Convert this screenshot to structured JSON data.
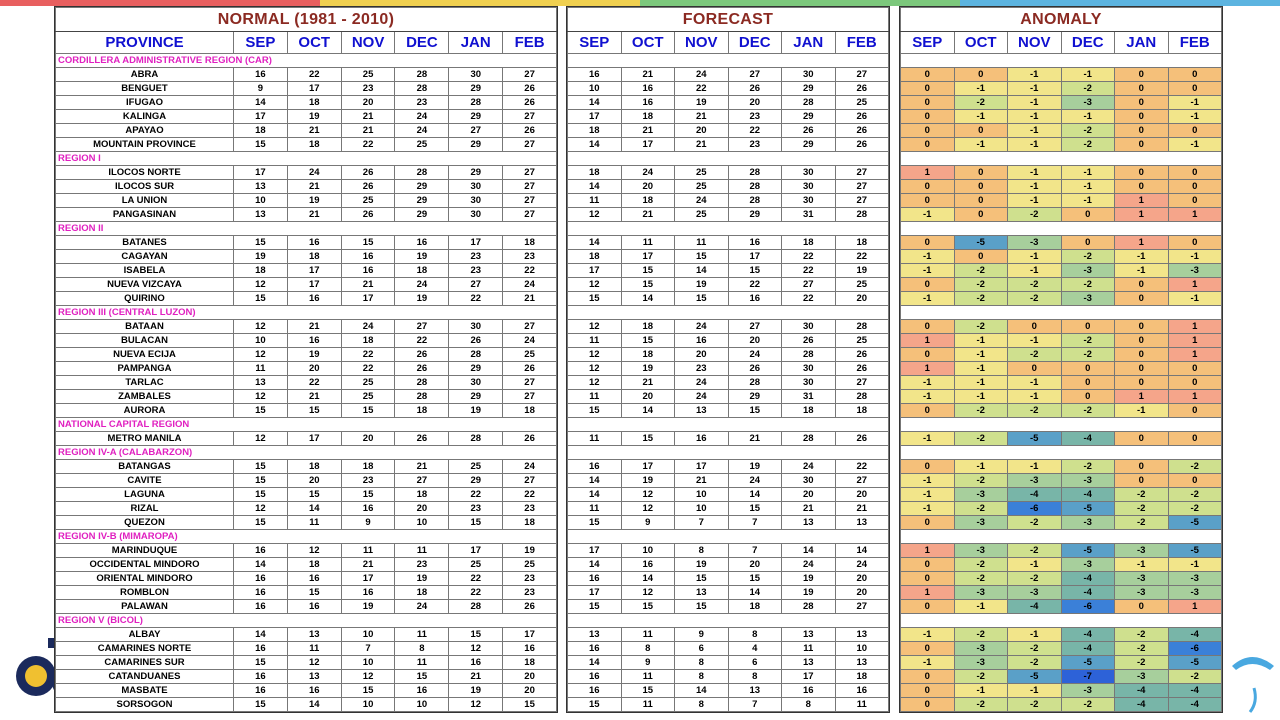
{
  "titles": {
    "normal": "NORMAL (1981 - 2010)",
    "forecast": "FORECAST",
    "anomaly": "ANOMALY"
  },
  "headers": {
    "province": "PROVINCE",
    "months": [
      "SEP",
      "OCT",
      "NOV",
      "DEC",
      "JAN",
      "FEB"
    ]
  },
  "colors": {
    "title": "#8b2a22",
    "header": "#1010d0",
    "region": "#e020c0",
    "anom_pos2": "#f07060",
    "anom_pos1": "#f5a58a",
    "anom_zero": "#f5c07a",
    "anom_neg1": "#f2e58a",
    "anom_neg2": "#cfe08e",
    "anom_neg3": "#a7cf9c",
    "anom_neg4": "#78b5a8",
    "anom_neg5": "#5aa0c8",
    "anom_neg6": "#3b80d8",
    "anom_neg7": "#2d62d8",
    "topbar": [
      "#e85f5f",
      "#f0d050",
      "#7cc87c",
      "#5cb4e0"
    ]
  },
  "logos": {
    "left": "the-weather-and-climate-authority-logo",
    "right": "pagasa-logo"
  },
  "rows": [
    {
      "region": "CORDILLERA ADMINISTRATIVE REGION (CAR)"
    },
    {
      "province": "ABRA",
      "normal": [
        16,
        22,
        25,
        28,
        30,
        27
      ],
      "forecast": [
        16,
        21,
        24,
        27,
        30,
        27
      ],
      "anomaly": [
        0,
        0,
        -1,
        -1,
        0,
        0
      ]
    },
    {
      "province": "BENGUET",
      "normal": [
        9,
        17,
        23,
        28,
        29,
        26
      ],
      "forecast": [
        10,
        16,
        22,
        26,
        29,
        26
      ],
      "anomaly": [
        0,
        -1,
        -1,
        -2,
        0,
        0
      ]
    },
    {
      "province": "IFUGAO",
      "normal": [
        14,
        18,
        20,
        23,
        28,
        26
      ],
      "forecast": [
        14,
        16,
        19,
        20,
        28,
        25
      ],
      "anomaly": [
        0,
        -2,
        -1,
        -3,
        0,
        -1
      ]
    },
    {
      "province": "KALINGA",
      "normal": [
        17,
        19,
        21,
        24,
        29,
        27
      ],
      "forecast": [
        17,
        18,
        21,
        23,
        29,
        26
      ],
      "anomaly": [
        0,
        -1,
        -1,
        -1,
        0,
        -1
      ]
    },
    {
      "province": "APAYAO",
      "normal": [
        18,
        21,
        21,
        24,
        27,
        26
      ],
      "forecast": [
        18,
        21,
        20,
        22,
        26,
        26
      ],
      "anomaly": [
        0,
        0,
        -1,
        -2,
        0,
        0
      ]
    },
    {
      "province": "MOUNTAIN PROVINCE",
      "normal": [
        15,
        18,
        22,
        25,
        29,
        27
      ],
      "forecast": [
        14,
        17,
        21,
        23,
        29,
        26
      ],
      "anomaly": [
        0,
        -1,
        -1,
        -2,
        0,
        -1
      ]
    },
    {
      "region": "REGION I"
    },
    {
      "province": "ILOCOS NORTE",
      "normal": [
        17,
        24,
        26,
        28,
        29,
        27
      ],
      "forecast": [
        18,
        24,
        25,
        28,
        30,
        27
      ],
      "anomaly": [
        1,
        0,
        -1,
        -1,
        0,
        0
      ]
    },
    {
      "province": "ILOCOS SUR",
      "normal": [
        13,
        21,
        26,
        29,
        30,
        27
      ],
      "forecast": [
        14,
        20,
        25,
        28,
        30,
        27
      ],
      "anomaly": [
        0,
        0,
        -1,
        -1,
        0,
        0
      ]
    },
    {
      "province": "LA UNION",
      "normal": [
        10,
        19,
        25,
        29,
        30,
        27
      ],
      "forecast": [
        11,
        18,
        24,
        28,
        30,
        27
      ],
      "anomaly": [
        0,
        0,
        -1,
        -1,
        1,
        0
      ]
    },
    {
      "province": "PANGASINAN",
      "normal": [
        13,
        21,
        26,
        29,
        30,
        27
      ],
      "forecast": [
        12,
        21,
        25,
        29,
        31,
        28
      ],
      "anomaly": [
        -1,
        0,
        -2,
        0,
        1,
        1
      ]
    },
    {
      "region": "REGION II"
    },
    {
      "province": "BATANES",
      "normal": [
        15,
        16,
        15,
        16,
        17,
        18
      ],
      "forecast": [
        14,
        11,
        11,
        16,
        18,
        18
      ],
      "anomaly": [
        0,
        -5,
        -3,
        0,
        1,
        0
      ]
    },
    {
      "province": "CAGAYAN",
      "normal": [
        19,
        18,
        16,
        19,
        23,
        23
      ],
      "forecast": [
        18,
        17,
        15,
        17,
        22,
        22
      ],
      "anomaly": [
        -1,
        0,
        -1,
        -2,
        -1,
        -1
      ]
    },
    {
      "province": "ISABELA",
      "normal": [
        18,
        17,
        16,
        18,
        23,
        22
      ],
      "forecast": [
        17,
        15,
        14,
        15,
        22,
        19
      ],
      "anomaly": [
        -1,
        -2,
        -1,
        -3,
        -1,
        -3
      ]
    },
    {
      "province": "NUEVA VIZCAYA",
      "normal": [
        12,
        17,
        21,
        24,
        27,
        24
      ],
      "forecast": [
        12,
        15,
        19,
        22,
        27,
        25
      ],
      "anomaly": [
        0,
        -2,
        -2,
        -2,
        0,
        1
      ]
    },
    {
      "province": "QUIRINO",
      "normal": [
        15,
        16,
        17,
        19,
        22,
        21
      ],
      "forecast": [
        15,
        14,
        15,
        16,
        22,
        20
      ],
      "anomaly": [
        -1,
        -2,
        -2,
        -3,
        0,
        -1
      ]
    },
    {
      "region": "REGION III (CENTRAL LUZON)"
    },
    {
      "province": "BATAAN",
      "normal": [
        12,
        21,
        24,
        27,
        30,
        27
      ],
      "forecast": [
        12,
        18,
        24,
        27,
        30,
        28
      ],
      "anomaly": [
        0,
        -2,
        0,
        0,
        0,
        1
      ]
    },
    {
      "province": "BULACAN",
      "normal": [
        10,
        16,
        18,
        22,
        26,
        24
      ],
      "forecast": [
        11,
        15,
        16,
        20,
        26,
        25
      ],
      "anomaly": [
        1,
        -1,
        -1,
        -2,
        0,
        1
      ]
    },
    {
      "province": "NUEVA ECIJA",
      "normal": [
        12,
        19,
        22,
        26,
        28,
        25
      ],
      "forecast": [
        12,
        18,
        20,
        24,
        28,
        26
      ],
      "anomaly": [
        0,
        -1,
        -2,
        -2,
        0,
        1
      ]
    },
    {
      "province": "PAMPANGA",
      "normal": [
        11,
        20,
        22,
        26,
        29,
        26
      ],
      "forecast": [
        12,
        19,
        23,
        26,
        30,
        26
      ],
      "anomaly": [
        1,
        -1,
        0,
        0,
        0,
        0
      ]
    },
    {
      "province": "TARLAC",
      "normal": [
        13,
        22,
        25,
        28,
        30,
        27
      ],
      "forecast": [
        12,
        21,
        24,
        28,
        30,
        27
      ],
      "anomaly": [
        -1,
        -1,
        -1,
        0,
        0,
        0
      ]
    },
    {
      "province": "ZAMBALES",
      "normal": [
        12,
        21,
        25,
        28,
        29,
        27
      ],
      "forecast": [
        11,
        20,
        24,
        29,
        31,
        28
      ],
      "anomaly": [
        -1,
        -1,
        -1,
        0,
        1,
        1
      ]
    },
    {
      "province": "AURORA",
      "normal": [
        15,
        15,
        15,
        18,
        19,
        18
      ],
      "forecast": [
        15,
        14,
        13,
        15,
        18,
        18
      ],
      "anomaly": [
        0,
        -2,
        -2,
        -2,
        -1,
        0
      ]
    },
    {
      "region": "NATIONAL CAPITAL REGION"
    },
    {
      "province": "METRO MANILA",
      "normal": [
        12,
        17,
        20,
        26,
        28,
        26
      ],
      "forecast": [
        11,
        15,
        16,
        21,
        28,
        26
      ],
      "anomaly": [
        -1,
        -2,
        -5,
        -4,
        0,
        0
      ]
    },
    {
      "region": "REGION IV-A (CALABARZON)"
    },
    {
      "province": "BATANGAS",
      "normal": [
        15,
        18,
        18,
        21,
        25,
        24
      ],
      "forecast": [
        16,
        17,
        17,
        19,
        24,
        22
      ],
      "anomaly": [
        0,
        -1,
        -1,
        -2,
        0,
        -2
      ]
    },
    {
      "province": "CAVITE",
      "normal": [
        15,
        20,
        23,
        27,
        29,
        27
      ],
      "forecast": [
        14,
        19,
        21,
        24,
        30,
        27
      ],
      "anomaly": [
        -1,
        -2,
        -3,
        -3,
        0,
        0
      ]
    },
    {
      "province": "LAGUNA",
      "normal": [
        15,
        15,
        15,
        18,
        22,
        22
      ],
      "forecast": [
        14,
        12,
        10,
        14,
        20,
        20
      ],
      "anomaly": [
        -1,
        -3,
        -4,
        -4,
        -2,
        -2
      ]
    },
    {
      "province": "RIZAL",
      "normal": [
        12,
        14,
        16,
        20,
        23,
        23
      ],
      "forecast": [
        11,
        12,
        10,
        15,
        21,
        21
      ],
      "anomaly": [
        -1,
        -2,
        -6,
        -5,
        -2,
        -2
      ]
    },
    {
      "province": "QUEZON",
      "normal": [
        15,
        11,
        9,
        10,
        15,
        18
      ],
      "forecast": [
        15,
        9,
        7,
        7,
        13,
        13
      ],
      "anomaly": [
        0,
        -3,
        -2,
        -3,
        -2,
        -5
      ]
    },
    {
      "region": "REGION IV-B (MIMAROPA)"
    },
    {
      "province": "MARINDUQUE",
      "normal": [
        16,
        12,
        11,
        11,
        17,
        19
      ],
      "forecast": [
        17,
        10,
        8,
        7,
        14,
        14
      ],
      "anomaly": [
        1,
        -3,
        -2,
        -5,
        -3,
        -5
      ]
    },
    {
      "province": "OCCIDENTAL MINDORO",
      "normal": [
        14,
        18,
        21,
        23,
        25,
        25
      ],
      "forecast": [
        14,
        16,
        19,
        20,
        24,
        24
      ],
      "anomaly": [
        0,
        -2,
        -1,
        -3,
        -1,
        -1
      ]
    },
    {
      "province": "ORIENTAL MINDORO",
      "normal": [
        16,
        16,
        17,
        19,
        22,
        23
      ],
      "forecast": [
        16,
        14,
        15,
        15,
        19,
        20
      ],
      "anomaly": [
        0,
        -2,
        -2,
        -4,
        -3,
        -3
      ]
    },
    {
      "province": "ROMBLON",
      "normal": [
        16,
        15,
        16,
        18,
        22,
        23
      ],
      "forecast": [
        17,
        12,
        13,
        14,
        19,
        20
      ],
      "anomaly": [
        1,
        -3,
        -3,
        -4,
        -3,
        -3
      ]
    },
    {
      "province": "PALAWAN",
      "normal": [
        16,
        16,
        19,
        24,
        28,
        26
      ],
      "forecast": [
        15,
        15,
        15,
        18,
        28,
        27
      ],
      "anomaly": [
        0,
        -1,
        -4,
        -6,
        0,
        1
      ]
    },
    {
      "region": "REGION V (BICOL)"
    },
    {
      "province": "ALBAY",
      "normal": [
        14,
        13,
        10,
        11,
        15,
        17
      ],
      "forecast": [
        13,
        11,
        9,
        8,
        13,
        13
      ],
      "anomaly": [
        -1,
        -2,
        -1,
        -4,
        -2,
        -4
      ]
    },
    {
      "province": "CAMARINES NORTE",
      "normal": [
        16,
        11,
        7,
        8,
        12,
        16
      ],
      "forecast": [
        16,
        8,
        6,
        4,
        11,
        10
      ],
      "anomaly": [
        0,
        -3,
        -2,
        -4,
        -2,
        -6
      ]
    },
    {
      "province": "CAMARINES SUR",
      "normal": [
        15,
        12,
        10,
        11,
        16,
        18
      ],
      "forecast": [
        14,
        9,
        8,
        6,
        13,
        13
      ],
      "anomaly": [
        -1,
        -3,
        -2,
        -5,
        -2,
        -5
      ]
    },
    {
      "province": "CATANDUANES",
      "normal": [
        16,
        13,
        12,
        15,
        21,
        20
      ],
      "forecast": [
        16,
        11,
        8,
        8,
        17,
        18
      ],
      "anomaly": [
        0,
        -2,
        -5,
        -7,
        -3,
        -2
      ]
    },
    {
      "province": "MASBATE",
      "normal": [
        16,
        16,
        15,
        16,
        19,
        20
      ],
      "forecast": [
        16,
        15,
        14,
        13,
        16,
        16
      ],
      "anomaly": [
        0,
        -1,
        -1,
        -3,
        -4,
        -4
      ]
    },
    {
      "province": "SORSOGON",
      "normal": [
        15,
        14,
        10,
        10,
        12,
        15
      ],
      "forecast": [
        15,
        11,
        8,
        7,
        8,
        11
      ],
      "anomaly": [
        0,
        -2,
        -2,
        -2,
        -4,
        -4
      ]
    }
  ]
}
